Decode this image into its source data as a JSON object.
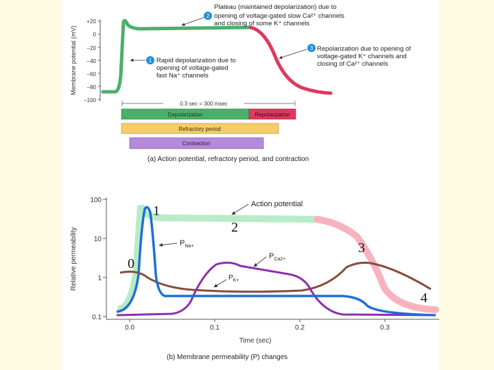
{
  "top_figure": {
    "y_axis_label": "Membrane potential (mV)",
    "y_ticks": [
      "+20",
      "0",
      "−20",
      "−40",
      "−60",
      "−80",
      "−100"
    ],
    "callout_1": {
      "number": "1",
      "lines": [
        "Rapid depolarization due to",
        "opening of voltage-gated",
        "fast Na⁺ channels"
      ]
    },
    "callout_2": {
      "number": "2",
      "lines": [
        "Plateau (maintained depolarization) due to",
        "opening of voltage-gated slow Ca²⁺ channels",
        "and closing of some K⁺ channels"
      ]
    },
    "callout_3": {
      "number": "3",
      "lines": [
        "Repolarization due to opening of",
        "voltage-gated K⁺ channels and",
        "closing of Ca²⁺ channels"
      ]
    },
    "duration_label": "0.3 sec = 300 msec",
    "bars": {
      "depolarization": "Depolarization",
      "repolarization": "Repolarization",
      "refractory": "Refractory period",
      "contraction": "Contraction"
    },
    "caption": "(a) Action potential, refractory period, and contraction",
    "colors": {
      "depolarization": "#4caf6a",
      "repolarization": "#e0385f",
      "refractory": "#f6cc6a",
      "contraction": "#b58ad8"
    }
  },
  "bottom_figure": {
    "y_axis_label": "Relative permeability",
    "y_ticks": [
      "100",
      "10",
      "1",
      "0.1"
    ],
    "x_ticks": [
      "0.0",
      "0.1",
      "0.2",
      "0.3"
    ],
    "x_axis_label": "Time (sec)",
    "caption": "(b) Membrane permeability (P) changes",
    "labels": {
      "action_potential": "Action potential",
      "p_na": "P",
      "p_na_sub": "Na+",
      "p_ca": "P",
      "p_ca_sub": "Ca2+",
      "p_k": "P",
      "p_k_sub": "K+"
    },
    "phase_numbers": [
      "0",
      "1",
      "2",
      "3",
      "4"
    ],
    "colors": {
      "action_potential_depol": "#b8ecc8",
      "action_potential_repol": "#f7b3bd",
      "p_na": "#1e6fd6",
      "p_ca": "#8b2fb0",
      "p_k": "#8a4a3a"
    }
  }
}
